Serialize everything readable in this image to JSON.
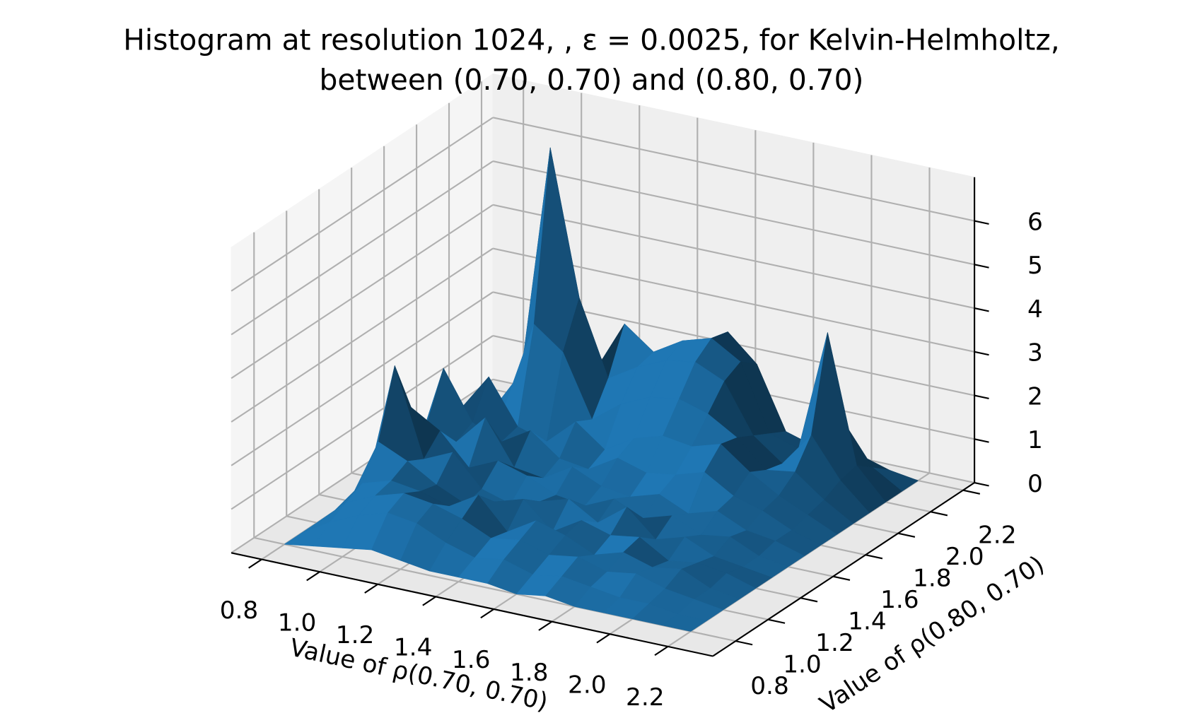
{
  "chart_data": {
    "type": "surface",
    "title": [
      "Histogram at resolution 1024, , ε = 0.0025, for Kelvin-Helmholtz,",
      "between (0.70, 0.70) and (0.80, 0.70)"
    ],
    "xlabel": "Value of ρ(0.70, 0.70)",
    "ylabel": "Value of ρ(0.80, 0.70)",
    "color": "#1f77b4",
    "grid": true,
    "xlim": [
      0.695,
      2.355
    ],
    "ylim": [
      0.66,
      2.27
    ],
    "zlim": [
      0,
      7
    ],
    "xticks": [
      0.8,
      {
        "value": 1,
        "label": "1.0"
      },
      1.2,
      1.4,
      1.6,
      1.8,
      {
        "value": 2,
        "label": "2.0"
      },
      2.2
    ],
    "yticks": [
      0.8,
      {
        "value": 1,
        "label": "1.0"
      },
      1.2,
      1.4,
      1.6,
      1.8,
      {
        "value": 2,
        "label": "2.0"
      },
      2.2
    ],
    "zticks": [
      0,
      1,
      2,
      3,
      4,
      5,
      6
    ],
    "x": [
      0.8,
      0.9,
      1.0,
      1.1,
      1.2,
      1.3,
      1.4,
      1.5,
      1.6,
      1.7,
      1.8,
      1.9,
      2.0,
      2.1,
      2.2
    ],
    "y": [
      0.8,
      0.9,
      1.0,
      1.1,
      1.2,
      1.3,
      1.4,
      1.5,
      1.6,
      1.7,
      1.8,
      1.9,
      2.0,
      2.1,
      2.2
    ],
    "values": [
      [
        0,
        0.1,
        0.2,
        0.3,
        0.2,
        0.1,
        0.1,
        0.1,
        0,
        0.1,
        0,
        0,
        0,
        0,
        0
      ],
      [
        0,
        0.4,
        0.7,
        0.9,
        0.8,
        0.5,
        0.3,
        0.4,
        0.2,
        0.3,
        0.2,
        0.1,
        0.1,
        0,
        0
      ],
      [
        0,
        0.6,
        0.9,
        1.1,
        1.0,
        0.8,
        0.5,
        0.6,
        0.4,
        0.5,
        0.3,
        0.4,
        0.2,
        0.1,
        0
      ],
      [
        0,
        0.8,
        1.0,
        0.9,
        0.7,
        1.1,
        0.4,
        0.8,
        0.6,
        0.3,
        0.5,
        0.3,
        0.4,
        0.1,
        0
      ],
      [
        0,
        1.5,
        1.2,
        0.8,
        0.5,
        0.7,
        0.9,
        0.3,
        0.7,
        0.5,
        0.6,
        0.2,
        0.3,
        0.2,
        0
      ],
      [
        0,
        3.0,
        1.0,
        1.3,
        0.6,
        0.4,
        0.6,
        0.8,
        0.4,
        0.9,
        0.3,
        0.5,
        0.2,
        0.1,
        0
      ],
      [
        0,
        1.8,
        1.4,
        0.7,
        1.0,
        0.8,
        0.5,
        0.4,
        0.7,
        0.4,
        0.6,
        0.3,
        0.4,
        0.1,
        0
      ],
      [
        0,
        1.2,
        0.9,
        1.6,
        0.6,
        0.5,
        0.9,
        0.6,
        0.5,
        0.7,
        0.4,
        0.6,
        0.3,
        0.2,
        0
      ],
      [
        0,
        2.2,
        1.1,
        0.8,
        1.2,
        0.7,
        0.6,
        1.0,
        0.8,
        0.9,
        1.1,
        0.7,
        0.5,
        0.2,
        0
      ],
      [
        0,
        1.0,
        1.9,
        0.9,
        0.7,
        1.3,
        0.8,
        1.2,
        1.4,
        1.3,
        1.5,
        1.0,
        0.6,
        0.3,
        0
      ],
      [
        0,
        0.7,
        1.0,
        3.0,
        2.5,
        1.1,
        1.6,
        1.9,
        2.0,
        1.8,
        1.4,
        0.8,
        0.9,
        0.4,
        0
      ],
      [
        0,
        0.5,
        1.5,
        6.8,
        3.5,
        1.8,
        2.2,
        2.5,
        2.6,
        2.3,
        1.2,
        0.7,
        1.5,
        0.6,
        0
      ],
      [
        0,
        0.4,
        0.8,
        2.0,
        1.6,
        2.8,
        2.3,
        2.7,
        2.9,
        2.5,
        1.0,
        0.8,
        3.6,
        0.7,
        0
      ],
      [
        0,
        0.2,
        0.4,
        0.9,
        0.7,
        1.4,
        1.8,
        2.4,
        2.8,
        2.2,
        0.8,
        0.6,
        1.3,
        0.4,
        0
      ],
      [
        0,
        0.1,
        0.1,
        0.3,
        0.2,
        0.4,
        0.5,
        0.6,
        0.7,
        0.5,
        0.3,
        0.2,
        0.3,
        0.1,
        0
      ]
    ]
  }
}
